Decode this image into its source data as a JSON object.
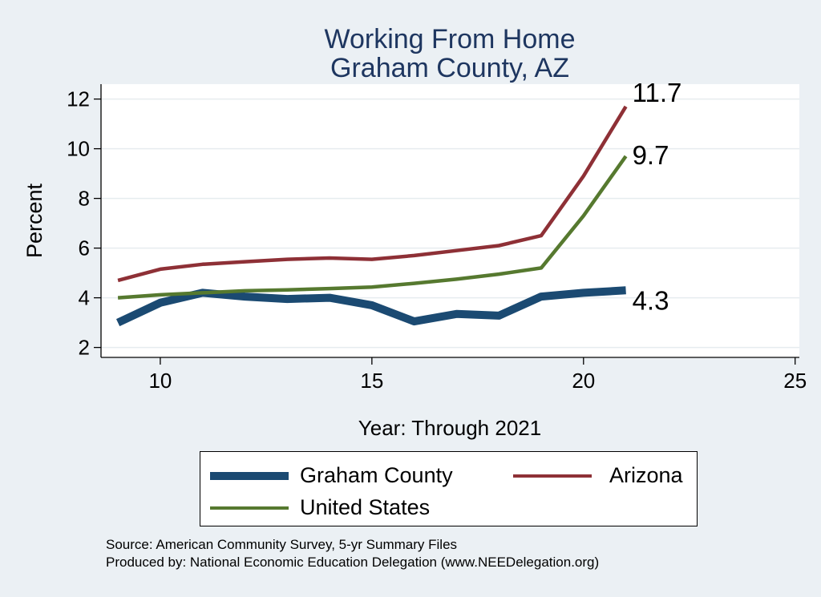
{
  "chart_data": {
    "type": "line",
    "title": "Working From Home",
    "subtitle": "Graham County, AZ",
    "xlabel": "Year: Through 2021",
    "ylabel": "Percent",
    "xlim": [
      8.6,
      25.1
    ],
    "ylim": [
      1.6,
      12.6
    ],
    "xticks": [
      10,
      15,
      20,
      25
    ],
    "yticks": [
      2,
      4,
      6,
      8,
      10,
      12
    ],
    "grid": true,
    "legend_position": "bottom",
    "series": [
      {
        "name": "Graham County",
        "color": "#1b4a72",
        "x": [
          9,
          10,
          11,
          12,
          13,
          14,
          15,
          16,
          17,
          18,
          19,
          20,
          21
        ],
        "y": [
          3.0,
          3.8,
          4.2,
          4.05,
          3.95,
          4.0,
          3.7,
          3.05,
          3.35,
          3.28,
          4.05,
          4.2,
          4.3
        ],
        "end_label": "4.3"
      },
      {
        "name": "Arizona",
        "color": "#8e3036",
        "x": [
          9,
          10,
          11,
          12,
          13,
          14,
          15,
          16,
          17,
          18,
          19,
          20,
          21
        ],
        "y": [
          4.7,
          5.15,
          5.35,
          5.45,
          5.55,
          5.6,
          5.55,
          5.7,
          5.9,
          6.1,
          6.5,
          8.9,
          11.7
        ],
        "end_label": "11.7"
      },
      {
        "name": "United States",
        "color": "#56792f",
        "x": [
          9,
          10,
          11,
          12,
          13,
          14,
          15,
          16,
          17,
          18,
          19,
          20,
          21
        ],
        "y": [
          4.0,
          4.12,
          4.2,
          4.28,
          4.32,
          4.37,
          4.43,
          4.58,
          4.75,
          4.95,
          5.2,
          7.3,
          9.7
        ],
        "end_label": "9.7"
      }
    ],
    "source": "Source: American Community Survey, 5-yr Summary Files",
    "producer": "Produced by: National Economic Education Delegation (www.NEEDelegation.org)"
  }
}
